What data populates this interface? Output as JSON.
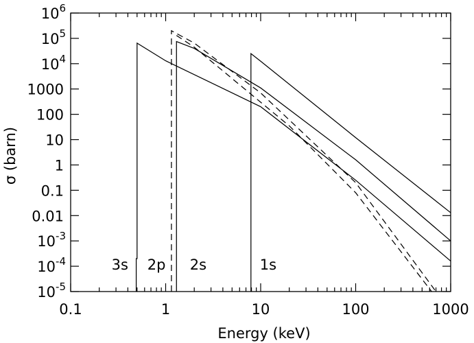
{
  "chart_data": {
    "type": "line",
    "title": "",
    "xlabel": "Energy (keV)",
    "ylabel": "σ (barn)",
    "xscale": "log",
    "yscale": "log",
    "xlim": [
      0.1,
      1000
    ],
    "ylim": [
      1e-05,
      1000000
    ],
    "grid": false,
    "x_ticks": [
      {
        "value": 0.1,
        "label": "0.1"
      },
      {
        "value": 1,
        "label": "1"
      },
      {
        "value": 10,
        "label": "10"
      },
      {
        "value": 100,
        "label": "100"
      },
      {
        "value": 1000,
        "label": "1000"
      }
    ],
    "y_ticks": [
      {
        "value": 1e-05,
        "base": "10",
        "exp": "-5"
      },
      {
        "value": 0.0001,
        "base": "10",
        "exp": "-4"
      },
      {
        "value": 0.001,
        "base": "10",
        "exp": "-3"
      },
      {
        "value": 0.01,
        "label": "0.01"
      },
      {
        "value": 0.1,
        "label": "0.1"
      },
      {
        "value": 1,
        "label": "1"
      },
      {
        "value": 10,
        "label": "10"
      },
      {
        "value": 100,
        "label": "100"
      },
      {
        "value": 1000,
        "label": "1000"
      },
      {
        "value": 10000,
        "base": "10",
        "exp": "4"
      },
      {
        "value": 100000,
        "base": "10",
        "exp": "5"
      },
      {
        "value": 1000000,
        "base": "10",
        "exp": "6"
      }
    ],
    "annotations": [
      {
        "text": "3s",
        "x": 0.33,
        "y": 0.00012
      },
      {
        "text": "2p",
        "x": 0.8,
        "y": 0.00012
      },
      {
        "text": "2s",
        "x": 2.2,
        "y": 0.00012
      },
      {
        "text": "1s",
        "x": 12,
        "y": 0.00012
      }
    ],
    "series": [
      {
        "style": "solid",
        "points": [
          [
            0.49,
            1e-05
          ],
          [
            0.49,
            0.0002
          ],
          [
            0.5,
            0.0002
          ],
          [
            0.5,
            65000
          ],
          [
            1,
            13000
          ],
          [
            10,
            200
          ],
          [
            100,
            0.25
          ],
          [
            1000,
            0.00016
          ]
        ]
      },
      {
        "style": "solid",
        "points": [
          [
            1.3,
            1e-05
          ],
          [
            1.3,
            75000
          ],
          [
            2,
            40000
          ],
          [
            10,
            1100
          ],
          [
            100,
            1.6
          ],
          [
            1000,
            0.001
          ]
        ]
      },
      {
        "style": "solid",
        "points": [
          [
            7.9,
            1e-05
          ],
          [
            7.9,
            25000
          ],
          [
            10,
            12500
          ],
          [
            100,
            12
          ],
          [
            1000,
            0.013
          ]
        ]
      },
      {
        "style": "dashed",
        "points": [
          [
            1.15,
            1e-05
          ],
          [
            1.15,
            200000
          ],
          [
            2,
            65000
          ],
          [
            10,
            700
          ],
          [
            20,
            60
          ],
          [
            100,
            0.2
          ],
          [
            700,
            1e-05
          ]
        ]
      },
      {
        "style": "dashed",
        "points": [
          [
            1.3,
            130000
          ],
          [
            2,
            45000
          ],
          [
            10,
            300
          ],
          [
            20,
            35
          ],
          [
            100,
            0.08
          ],
          [
            630,
            1e-05
          ]
        ]
      }
    ]
  }
}
